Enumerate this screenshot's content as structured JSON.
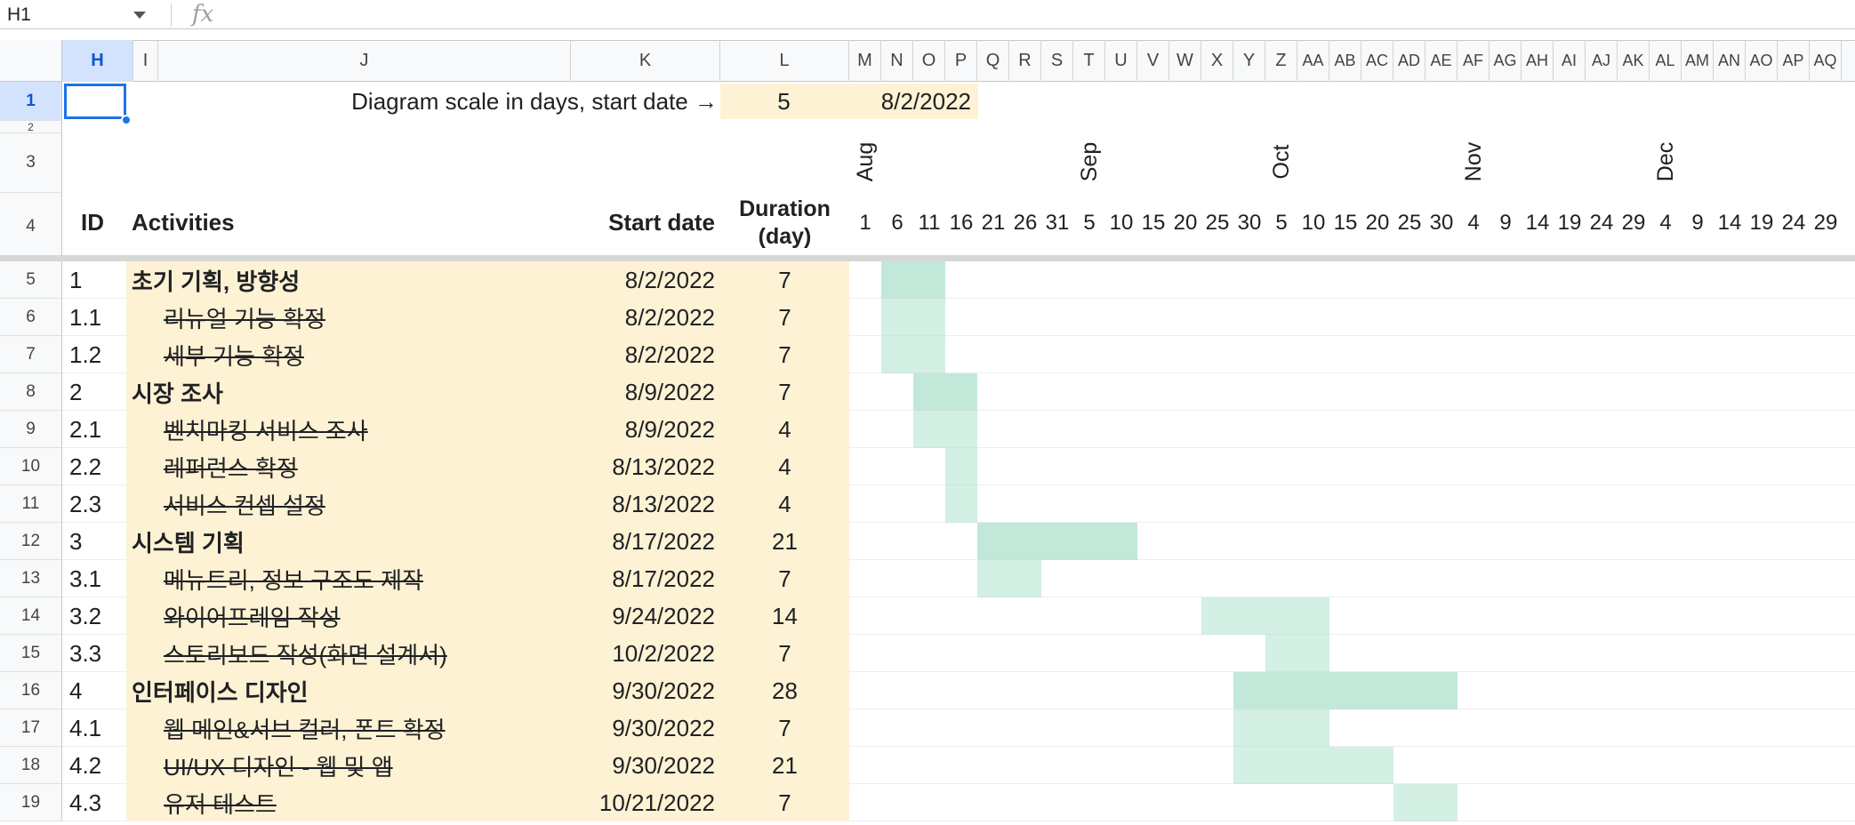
{
  "formula_bar": {
    "namebox": "H1",
    "fx": "fx"
  },
  "columns": [
    "H",
    "I",
    "J",
    "K",
    "L",
    "M",
    "N",
    "O",
    "P",
    "Q",
    "R",
    "S",
    "T",
    "U",
    "V",
    "W",
    "X",
    "Y",
    "Z",
    "AA",
    "AB",
    "AC",
    "AD",
    "AE",
    "AF",
    "AG",
    "AH",
    "AI",
    "AJ",
    "AK",
    "AL",
    "AM",
    "AN",
    "AO",
    "AP",
    "AQ"
  ],
  "rows": [
    "1",
    "2",
    "3",
    "4",
    "5",
    "6",
    "7",
    "8",
    "9",
    "10",
    "11",
    "12",
    "13",
    "14",
    "15",
    "16",
    "17",
    "18",
    "19"
  ],
  "header": {
    "scale_label": "Diagram scale in days, start date →",
    "scale_value": "5",
    "start_date": "8/2/2022",
    "id": "ID",
    "activities": "Activities",
    "start": "Start date",
    "duration": "Duration",
    "duration_unit": "(day)"
  },
  "months": [
    "Aug",
    "Sep",
    "Oct",
    "Nov",
    "Dec"
  ],
  "day_ticks": [
    "1",
    "6",
    "11",
    "16",
    "21",
    "26",
    "31",
    "5",
    "10",
    "15",
    "20",
    "25",
    "30",
    "5",
    "10",
    "15",
    "20",
    "25",
    "30",
    "4",
    "9",
    "14",
    "19",
    "24",
    "29",
    "4",
    "9",
    "14",
    "19",
    "24",
    "29"
  ],
  "tasks": [
    {
      "id": "1",
      "name": "초기 기획, 방향성",
      "start": "8/2/2022",
      "dur": "7",
      "bold": true,
      "done": false
    },
    {
      "id": "1.1",
      "name": "리뉴얼 기능 확정",
      "start": "8/2/2022",
      "dur": "7",
      "bold": false,
      "done": true
    },
    {
      "id": "1.2",
      "name": "세부 기능 확정",
      "start": "8/2/2022",
      "dur": "7",
      "bold": false,
      "done": true
    },
    {
      "id": "2",
      "name": "시장 조사",
      "start": "8/9/2022",
      "dur": "7",
      "bold": true,
      "done": false
    },
    {
      "id": "2.1",
      "name": "벤치마킹 서비스 조사",
      "start": "8/9/2022",
      "dur": "4",
      "bold": false,
      "done": true
    },
    {
      "id": "2.2",
      "name": "레퍼런스 확정",
      "start": "8/13/2022",
      "dur": "4",
      "bold": false,
      "done": true
    },
    {
      "id": "2.3",
      "name": "서비스 컨셉 설정",
      "start": "8/13/2022",
      "dur": "4",
      "bold": false,
      "done": true
    },
    {
      "id": "3",
      "name": "시스템 기획",
      "start": "8/17/2022",
      "dur": "21",
      "bold": true,
      "done": false
    },
    {
      "id": "3.1",
      "name": "메뉴트리, 정보 구조도 제작",
      "start": "8/17/2022",
      "dur": "7",
      "bold": false,
      "done": true
    },
    {
      "id": "3.2",
      "name": "와이어프레임 작성 ",
      "start": "9/24/2022",
      "dur": "14",
      "bold": false,
      "done": true
    },
    {
      "id": "3.3",
      "name": "스토리보드 작성(화면 설계서)",
      "start": "10/2/2022",
      "dur": "7",
      "bold": false,
      "done": true
    },
    {
      "id": "4",
      "name": "인터페이스 디자인",
      "start": "9/30/2022",
      "dur": "28",
      "bold": true,
      "done": false
    },
    {
      "id": "4.1",
      "name": "웹 메인&서브 컬러, 폰트 확정",
      "start": "9/30/2022",
      "dur": "7",
      "bold": false,
      "done": true
    },
    {
      "id": "4.2",
      "name": "UI/UX 디자인 - 웹 및 앱",
      "start": "9/30/2022",
      "dur": "21",
      "bold": false,
      "done": true
    },
    {
      "id": "4.3",
      "name": "유저 테스트",
      "start": "10/21/2022",
      "dur": "7",
      "bold": false,
      "done": true
    }
  ],
  "colors": {
    "beige": "#fef2d4",
    "gantt": "#b7e4d2",
    "selection": "#1a73e8"
  }
}
